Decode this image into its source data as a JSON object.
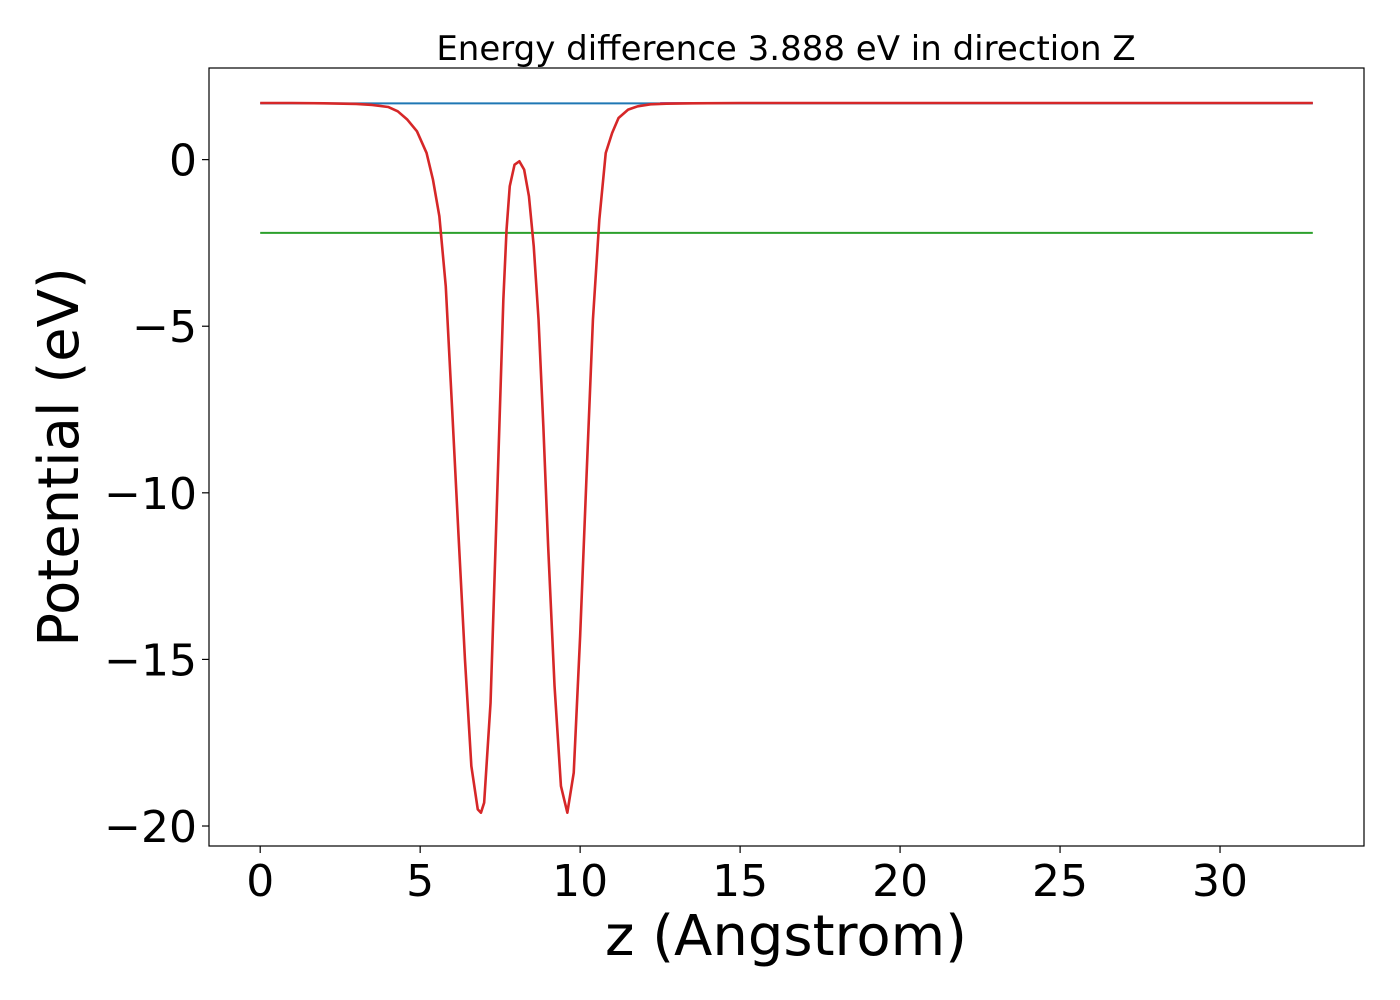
{
  "chart_data": {
    "type": "line",
    "title": "Energy difference 3.888 eV in direction Z",
    "xlabel": "z (Angstrom)",
    "ylabel": "Potential (eV)",
    "xlim": [
      -1.6,
      34.5
    ],
    "ylim": [
      -20.6,
      2.75
    ],
    "xticks": [
      0,
      5,
      10,
      15,
      20,
      25,
      30
    ],
    "xtick_labels": [
      "0",
      "5",
      "10",
      "15",
      "20",
      "25",
      "30"
    ],
    "yticks": [
      0,
      -5,
      -10,
      -15,
      -20
    ],
    "ytick_labels": [
      "0",
      "−5",
      "−10",
      "−15",
      "−20"
    ],
    "grid": false,
    "legend": false,
    "series": [
      {
        "color": "#1f77b4",
        "x": [
          0,
          32.9
        ],
        "y": [
          1.69,
          1.69
        ]
      },
      {
        "color": "#2ca02c",
        "x": [
          0,
          32.9
        ],
        "y": [
          -2.2,
          -2.2
        ]
      },
      {
        "color": "#9467bd",
        "x": [
          12.5,
          32.9
        ],
        "y": [
          1.7,
          1.7
        ]
      },
      {
        "color": "#d62728",
        "x": [
          0,
          1,
          2,
          3,
          3.5,
          4,
          4.3,
          4.6,
          4.9,
          5.2,
          5.4,
          5.6,
          5.8,
          6.0,
          6.2,
          6.4,
          6.6,
          6.8,
          6.9,
          7.0,
          7.2,
          7.4,
          7.6,
          7.7,
          7.8,
          7.95,
          8.1,
          8.25,
          8.4,
          8.55,
          8.7,
          8.85,
          9.0,
          9.2,
          9.4,
          9.6,
          9.8,
          10.0,
          10.2,
          10.4,
          10.6,
          10.8,
          11.0,
          11.2,
          11.5,
          11.8,
          12.2,
          12.7,
          13.5,
          15,
          20,
          25,
          30,
          32.9
        ],
        "y": [
          1.7,
          1.7,
          1.69,
          1.67,
          1.64,
          1.58,
          1.45,
          1.2,
          0.85,
          0.2,
          -0.6,
          -1.7,
          -3.8,
          -7.5,
          -11.3,
          -15.0,
          -18.2,
          -19.5,
          -19.6,
          -19.3,
          -16.3,
          -10.3,
          -4.2,
          -2.1,
          -0.8,
          -0.15,
          -0.05,
          -0.3,
          -1.1,
          -2.6,
          -4.8,
          -8.0,
          -11.6,
          -15.8,
          -18.8,
          -19.6,
          -18.4,
          -14.3,
          -9.5,
          -4.8,
          -1.8,
          0.2,
          0.8,
          1.25,
          1.5,
          1.6,
          1.66,
          1.68,
          1.69,
          1.7,
          1.7,
          1.7,
          1.7,
          1.7
        ]
      }
    ]
  }
}
